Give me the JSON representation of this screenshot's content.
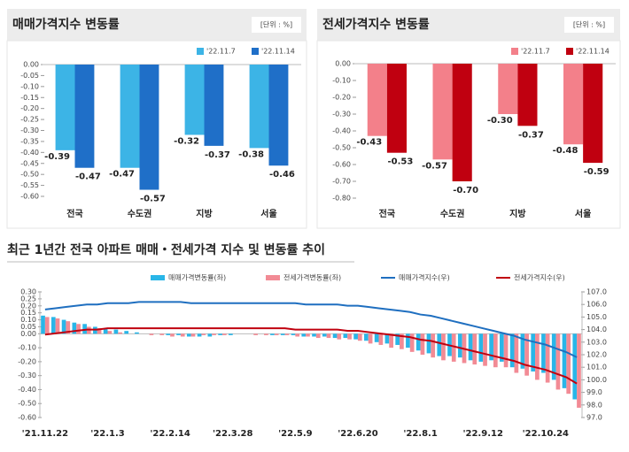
{
  "chart_data": [
    {
      "type": "bar",
      "title": "매매가격지수 변동률",
      "unit_note": "[단위 : %]",
      "categories": [
        "전국",
        "수도권",
        "지방",
        "서울"
      ],
      "series": [
        {
          "name": "'22.11.7",
          "color": "#3cb4e6",
          "values": [
            -0.39,
            -0.47,
            -0.32,
            -0.38
          ]
        },
        {
          "name": "'22.11.14",
          "color": "#1f6fc8",
          "values": [
            -0.47,
            -0.57,
            -0.37,
            -0.46
          ]
        }
      ],
      "ylim": [
        -0.6,
        0
      ],
      "yticks": [
        {
          "value": 0,
          "label": "0.00"
        },
        -0.05,
        {
          "value": -0.1,
          "label": "-0.10"
        },
        -0.15,
        {
          "value": -0.2,
          "label": "-0.20"
        },
        -0.25,
        {
          "value": -0.3,
          "label": "-0.30"
        },
        -0.35,
        {
          "value": -0.4,
          "label": "-0.40"
        },
        -0.45,
        {
          "value": -0.5,
          "label": "-0.50"
        },
        -0.55,
        {
          "value": -0.6,
          "label": "-0.60"
        }
      ],
      "legend": "top-right"
    },
    {
      "type": "bar",
      "title": "전세가격지수 변동률",
      "unit_note": "[단위 : %]",
      "categories": [
        "전국",
        "수도권",
        "지방",
        "서울"
      ],
      "series": [
        {
          "name": "'22.11.7",
          "color": "#f3808a",
          "values": [
            -0.43,
            -0.57,
            -0.3,
            -0.48
          ],
          "value_labels": [
            "-0.43",
            "-0.57",
            "-0.30",
            "-0.48"
          ]
        },
        {
          "name": "'22.11.14",
          "color": "#c00010",
          "values": [
            -0.53,
            -0.7,
            -0.37,
            -0.59
          ],
          "value_labels": [
            "-0.53",
            "-0.70",
            "-0.37",
            "-0.59"
          ]
        }
      ],
      "ylim": [
        -0.8,
        0
      ],
      "yticks": [
        {
          "value": 0,
          "label": "0.00"
        },
        {
          "value": -0.1,
          "label": "-0.10"
        },
        {
          "value": -0.2,
          "label": "-0.20"
        },
        {
          "value": -0.3,
          "label": "-0.30"
        },
        {
          "value": -0.4,
          "label": "-0.40"
        },
        {
          "value": -0.5,
          "label": "-0.50"
        },
        {
          "value": -0.6,
          "label": "-0.60"
        },
        {
          "value": -0.7,
          "label": "-0.70"
        },
        {
          "value": -0.8,
          "label": "-0.80"
        }
      ],
      "legend": "top-right"
    },
    {
      "type": "bar-line",
      "title": "최근 1년간 전국 아파트 매매・전세가격 지수 및 변동률 추이",
      "categories": [
        "'21.11.22",
        null,
        null,
        null,
        null,
        null,
        "'22.1.3",
        null,
        null,
        null,
        null,
        null,
        "'22.2.14",
        null,
        null,
        null,
        null,
        null,
        "'22.3.28",
        null,
        null,
        null,
        null,
        null,
        "'22.5.9",
        null,
        null,
        null,
        null,
        null,
        "'22.6.20",
        null,
        null,
        null,
        null,
        null,
        "'22.8.1",
        null,
        null,
        null,
        null,
        null,
        "'22.9.12",
        null,
        null,
        null,
        null,
        null,
        "'22.10.24",
        null,
        null,
        null
      ],
      "series": [
        {
          "name": "매매가격변동률(좌)",
          "color": "#29b6e8",
          "values": [
            0.13,
            0.12,
            0.1,
            0.08,
            0.07,
            0.05,
            0.04,
            0.03,
            0.02,
            0.01,
            0,
            0,
            -0.01,
            -0.01,
            -0.02,
            -0.02,
            -0.02,
            -0.01,
            -0.01,
            0,
            0,
            0,
            -0.01,
            -0.01,
            -0.01,
            -0.02,
            -0.02,
            -0.02,
            -0.03,
            -0.03,
            -0.04,
            -0.05,
            -0.06,
            -0.07,
            -0.08,
            -0.1,
            -0.12,
            -0.14,
            -0.16,
            -0.16,
            -0.17,
            -0.19,
            -0.2,
            -0.19,
            -0.2,
            -0.24,
            -0.25,
            -0.27,
            -0.28,
            -0.33,
            -0.39,
            -0.47
          ]
        },
        {
          "name": "전세가격변동률(좌)",
          "color": "#f28b95",
          "values": [
            0.12,
            0.11,
            0.09,
            0.07,
            0.05,
            0.04,
            0.02,
            0.01,
            0,
            0,
            -0.01,
            -0.01,
            -0.02,
            -0.02,
            -0.02,
            -0.01,
            -0.01,
            -0.01,
            0,
            0,
            -0.01,
            -0.01,
            -0.01,
            -0.01,
            -0.02,
            -0.02,
            -0.03,
            -0.03,
            -0.04,
            -0.04,
            -0.05,
            -0.07,
            -0.08,
            -0.1,
            -0.11,
            -0.13,
            -0.15,
            -0.17,
            -0.19,
            -0.2,
            -0.21,
            -0.22,
            -0.23,
            -0.24,
            -0.24,
            -0.28,
            -0.3,
            -0.33,
            -0.35,
            -0.4,
            -0.43,
            -0.53
          ]
        },
        {
          "name": "매매가격지수(우)",
          "color": "#1f6fc0",
          "axis": "y2",
          "values": [
            105.6,
            105.7,
            105.8,
            105.9,
            106.0,
            106.0,
            106.1,
            106.1,
            106.1,
            106.2,
            106.2,
            106.2,
            106.2,
            106.2,
            106.1,
            106.1,
            106.1,
            106.1,
            106.1,
            106.1,
            106.1,
            106.1,
            106.1,
            106.1,
            106.1,
            106.0,
            106.0,
            106.0,
            106.0,
            105.9,
            105.9,
            105.8,
            105.7,
            105.6,
            105.5,
            105.4,
            105.2,
            105.1,
            104.9,
            104.7,
            104.5,
            104.3,
            104.1,
            103.9,
            103.7,
            103.5,
            103.2,
            103.0,
            102.8,
            102.5,
            102.2,
            101.8
          ]
        },
        {
          "name": "전세가격지수(우)",
          "color": "#c0000f",
          "axis": "y2",
          "values": [
            103.6,
            103.7,
            103.8,
            103.9,
            104.0,
            104.0,
            104.1,
            104.1,
            104.1,
            104.1,
            104.1,
            104.1,
            104.1,
            104.1,
            104.1,
            104.1,
            104.1,
            104.1,
            104.1,
            104.1,
            104.1,
            104.1,
            104.1,
            104.1,
            104.0,
            104.0,
            104.0,
            104.0,
            104.0,
            103.9,
            103.9,
            103.8,
            103.7,
            103.6,
            103.5,
            103.4,
            103.2,
            103.1,
            102.9,
            102.7,
            102.5,
            102.3,
            102.1,
            101.9,
            101.7,
            101.5,
            101.2,
            101.0,
            100.8,
            100.5,
            100.2,
            99.7
          ]
        }
      ],
      "ylim": [
        -0.6,
        0.3
      ],
      "yticks": [
        {
          "value": 0.3,
          "label": "0.30"
        },
        0.25,
        {
          "value": 0.2,
          "label": "0.20"
        },
        0.15,
        {
          "value": 0.1,
          "label": "0.10"
        },
        0.05,
        {
          "value": 0,
          "label": "0.00"
        },
        {
          "value": -0.1,
          "label": "-0.10"
        },
        {
          "value": -0.2,
          "label": "-0.20"
        },
        {
          "value": -0.3,
          "label": "-0.30"
        },
        {
          "value": -0.4,
          "label": "-0.40"
        },
        {
          "value": -0.5,
          "label": "-0.50"
        },
        {
          "value": -0.6,
          "label": "-0.60"
        }
      ],
      "y2lim": [
        97,
        107
      ],
      "y2ticks": [
        {
          "value": 107,
          "label": "107.0"
        },
        {
          "value": 106,
          "label": "106.0"
        },
        {
          "value": 105,
          "label": "105.0"
        },
        {
          "value": 104,
          "label": "104.0"
        },
        {
          "value": 103,
          "label": "103.0"
        },
        {
          "value": 102,
          "label": "102.0"
        },
        {
          "value": 101,
          "label": "101.0"
        },
        {
          "value": 100,
          "label": "100.0"
        },
        {
          "value": 99,
          "label": "99.0"
        },
        {
          "value": 98,
          "label": "98.0"
        },
        {
          "value": 97,
          "label": "97.0"
        }
      ],
      "legend": "top"
    }
  ]
}
